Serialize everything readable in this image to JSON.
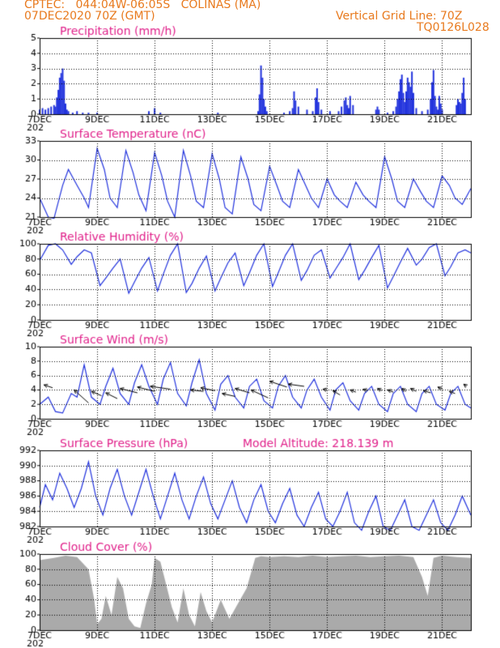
{
  "header": {
    "line1": "CPTEC:   044:04W-06:05S   COLINAS (MA)",
    "line2": "07DEC2020 70Z (GMT)",
    "grid_note": "Vertical Grid Line: 70Z",
    "code": "TQ0126L028"
  },
  "colors": {
    "header": "#e87a1e",
    "panel_title": "#e0208a",
    "series_line": "#2233dd",
    "bars": "#2233dd",
    "cloud_fill": "#aaaaaa",
    "frame": "#000000"
  },
  "x_axis": {
    "start_day": 7,
    "end_day": 22,
    "tick_labels": [
      "7DEC",
      "9DEC",
      "11DEC",
      "13DEC",
      "15DEC",
      "17DEC",
      "19DEC",
      "21DEC"
    ],
    "tick_days": [
      7,
      9,
      11,
      13,
      15,
      17,
      19,
      21
    ],
    "clipped_year_label": "202"
  },
  "chart_data": [
    {
      "type": "bar",
      "title": "Precipitation (mm/h)",
      "ylim": [
        0,
        5
      ],
      "yticks": [
        0,
        1,
        2,
        3,
        4,
        5
      ],
      "x": [
        7.0,
        7.1,
        7.2,
        7.3,
        7.4,
        7.5,
        7.55,
        7.6,
        7.65,
        7.7,
        7.75,
        7.8,
        7.85,
        7.9,
        7.95,
        8.0,
        8.15,
        8.3,
        8.5,
        8.7,
        9.0,
        10.8,
        11.0,
        11.2,
        13.2,
        14.6,
        14.65,
        14.7,
        14.75,
        14.8,
        14.85,
        14.9,
        15.5,
        15.7,
        15.8,
        15.85,
        15.9,
        16.0,
        16.3,
        16.5,
        16.6,
        16.65,
        16.7,
        16.8,
        17.1,
        17.4,
        17.5,
        17.6,
        17.65,
        17.7,
        17.75,
        17.8,
        17.9,
        18.7,
        18.75,
        18.8,
        19.1,
        19.3,
        19.4,
        19.45,
        19.5,
        19.55,
        19.6,
        19.65,
        19.7,
        19.75,
        19.8,
        19.85,
        19.9,
        19.95,
        20.0,
        20.1,
        20.3,
        20.5,
        20.6,
        20.65,
        20.7,
        20.75,
        20.8,
        20.85,
        20.9,
        20.95,
        21.0,
        21.5,
        21.55,
        21.6,
        21.65,
        21.7,
        21.75,
        21.8
      ],
      "values": [
        0.3,
        0.4,
        0.3,
        0.4,
        0.5,
        0.6,
        0.5,
        1.1,
        1.6,
        2.4,
        2.7,
        3.0,
        2.2,
        0.7,
        0.3,
        0.2,
        0.1,
        0.2,
        0.1,
        0.1,
        0.1,
        0.2,
        0.4,
        0.1,
        0.1,
        0.2,
        1.3,
        3.2,
        2.4,
        1.0,
        0.5,
        0.2,
        0.1,
        0.2,
        0.4,
        1.5,
        0.9,
        0.5,
        0.3,
        0.2,
        1.1,
        1.7,
        0.8,
        0.3,
        0.2,
        0.2,
        0.5,
        0.9,
        1.1,
        0.6,
        0.4,
        1.2,
        0.6,
        0.3,
        0.5,
        0.3,
        0.1,
        0.2,
        0.5,
        1.0,
        1.5,
        2.3,
        2.6,
        1.4,
        0.8,
        1.5,
        2.4,
        2.1,
        1.8,
        2.8,
        1.4,
        0.4,
        0.2,
        0.3,
        1.0,
        2.1,
        2.9,
        1.2,
        0.5,
        0.3,
        1.2,
        0.7,
        0.3,
        0.6,
        1.0,
        0.8,
        0.7,
        1.4,
        2.4,
        1.0
      ]
    },
    {
      "type": "line",
      "title": "Surface Temperature (nC)",
      "ylim": [
        21,
        33
      ],
      "yticks": [
        21,
        24,
        27,
        30,
        33
      ],
      "x": [
        7.0,
        7.3,
        7.5,
        7.8,
        8.0,
        8.3,
        8.55,
        8.7,
        9.0,
        9.25,
        9.45,
        9.7,
        10.0,
        10.25,
        10.45,
        10.7,
        11.0,
        11.25,
        11.45,
        11.7,
        12.0,
        12.25,
        12.45,
        12.7,
        13.0,
        13.25,
        13.45,
        13.7,
        14.0,
        14.25,
        14.45,
        14.7,
        15.0,
        15.25,
        15.45,
        15.7,
        16.0,
        16.25,
        16.45,
        16.7,
        17.0,
        17.25,
        17.45,
        17.7,
        18.0,
        18.25,
        18.45,
        18.7,
        19.0,
        19.25,
        19.45,
        19.7,
        20.0,
        20.25,
        20.45,
        20.7,
        21.0,
        21.25,
        21.45,
        21.7,
        22.0
      ],
      "values": [
        24.0,
        21.0,
        20.8,
        26.0,
        28.5,
        26.0,
        24.0,
        22.5,
        31.8,
        28.5,
        24.0,
        22.5,
        31.5,
        28.0,
        24.5,
        22.0,
        31.2,
        27.5,
        23.5,
        21.0,
        31.5,
        27.5,
        23.5,
        22.5,
        31.0,
        27.0,
        22.5,
        21.5,
        30.5,
        27.0,
        23.0,
        22.0,
        29.0,
        26.0,
        23.5,
        22.5,
        28.5,
        26.0,
        24.0,
        22.5,
        27.0,
        24.5,
        23.5,
        22.5,
        26.5,
        24.5,
        23.5,
        22.5,
        30.5,
        27.0,
        23.5,
        22.5,
        27.0,
        25.0,
        23.5,
        22.5,
        27.5,
        26.0,
        24.0,
        23.0,
        25.5
      ]
    },
    {
      "type": "line",
      "title": "Relative Humidity (%)",
      "ylim": [
        0,
        100
      ],
      "yticks": [
        0,
        20,
        40,
        60,
        80,
        100
      ],
      "x": [
        7.0,
        7.3,
        7.55,
        7.8,
        8.1,
        8.3,
        8.55,
        8.8,
        9.1,
        9.3,
        9.55,
        9.8,
        10.1,
        10.3,
        10.55,
        10.8,
        11.1,
        11.3,
        11.55,
        11.8,
        12.1,
        12.3,
        12.55,
        12.8,
        13.1,
        13.3,
        13.55,
        13.8,
        14.1,
        14.3,
        14.55,
        14.8,
        15.1,
        15.3,
        15.55,
        15.8,
        16.1,
        16.3,
        16.55,
        16.8,
        17.1,
        17.3,
        17.55,
        17.8,
        18.1,
        18.3,
        18.55,
        18.8,
        19.1,
        19.3,
        19.55,
        19.8,
        20.1,
        20.3,
        20.55,
        20.8,
        21.1,
        21.3,
        21.55,
        21.8,
        22.0
      ],
      "values": [
        78,
        98,
        100,
        92,
        73,
        83,
        92,
        88,
        45,
        55,
        68,
        80,
        35,
        50,
        68,
        82,
        38,
        60,
        85,
        100,
        36,
        48,
        68,
        84,
        38,
        55,
        75,
        88,
        45,
        62,
        85,
        100,
        44,
        62,
        85,
        100,
        52,
        65,
        85,
        92,
        55,
        67,
        82,
        100,
        53,
        65,
        82,
        98,
        42,
        57,
        76,
        94,
        72,
        80,
        95,
        100,
        58,
        70,
        88,
        92,
        88
      ]
    },
    {
      "type": "line",
      "title": "Surface Wind (m/s)",
      "ylim": [
        0,
        10
      ],
      "yticks": [
        0,
        2,
        4,
        6,
        8,
        10
      ],
      "x": [
        7.0,
        7.3,
        7.55,
        7.8,
        8.1,
        8.3,
        8.55,
        8.8,
        9.1,
        9.3,
        9.55,
        9.8,
        10.1,
        10.3,
        10.55,
        10.8,
        11.1,
        11.3,
        11.55,
        11.8,
        12.1,
        12.3,
        12.55,
        12.8,
        13.1,
        13.3,
        13.55,
        13.8,
        14.1,
        14.3,
        14.55,
        14.8,
        15.1,
        15.3,
        15.55,
        15.8,
        16.1,
        16.3,
        16.55,
        16.8,
        17.1,
        17.3,
        17.55,
        17.8,
        18.1,
        18.3,
        18.55,
        18.8,
        19.1,
        19.3,
        19.55,
        19.8,
        20.1,
        20.3,
        20.55,
        20.8,
        21.1,
        21.3,
        21.55,
        21.8,
        22.0
      ],
      "values": [
        2.0,
        3.0,
        1.0,
        0.8,
        3.5,
        3.0,
        7.5,
        3.0,
        2.0,
        4.5,
        7.0,
        3.5,
        2.0,
        5.0,
        7.5,
        4.5,
        2.0,
        5.5,
        7.8,
        3.5,
        1.8,
        5.0,
        8.2,
        3.5,
        1.2,
        4.8,
        6.0,
        3.0,
        1.5,
        4.5,
        5.5,
        2.5,
        1.5,
        4.5,
        6.0,
        3.0,
        1.5,
        4.0,
        5.5,
        3.0,
        1.2,
        4.0,
        5.0,
        2.5,
        1.2,
        3.5,
        4.5,
        2.0,
        1.0,
        3.5,
        4.5,
        2.0,
        1.0,
        3.5,
        4.5,
        2.0,
        1.2,
        3.5,
        4.5,
        2.0,
        1.5
      ]
    },
    {
      "type": "line",
      "title": "Surface Pressure (hPa)",
      "annotation": "Model Altitude: 218.139 m",
      "ylim": [
        982,
        992
      ],
      "yticks": [
        982,
        984,
        986,
        988,
        990,
        992
      ],
      "x": [
        7.0,
        7.2,
        7.45,
        7.7,
        7.95,
        8.2,
        8.45,
        8.7,
        8.95,
        9.2,
        9.45,
        9.7,
        9.95,
        10.2,
        10.45,
        10.7,
        10.95,
        11.2,
        11.45,
        11.7,
        11.95,
        12.2,
        12.45,
        12.7,
        12.95,
        13.2,
        13.45,
        13.7,
        13.95,
        14.2,
        14.45,
        14.7,
        14.95,
        15.2,
        15.45,
        15.7,
        15.95,
        16.2,
        16.45,
        16.7,
        16.95,
        17.2,
        17.45,
        17.7,
        17.95,
        18.2,
        18.45,
        18.7,
        18.95,
        19.2,
        19.45,
        19.7,
        19.95,
        20.2,
        20.45,
        20.7,
        20.95,
        21.2,
        21.45,
        21.7,
        22.0
      ],
      "values": [
        984.5,
        987.5,
        985.5,
        989.0,
        987.0,
        984.5,
        987.0,
        990.5,
        986.0,
        983.5,
        987.0,
        989.5,
        986.0,
        983.5,
        986.5,
        989.5,
        986.0,
        983.0,
        986.0,
        989.0,
        985.5,
        983.0,
        986.0,
        988.5,
        985.0,
        983.0,
        985.5,
        988.0,
        984.5,
        982.5,
        985.5,
        987.5,
        984.0,
        982.5,
        985.0,
        987.0,
        983.5,
        982.0,
        984.5,
        986.5,
        983.0,
        982.0,
        984.0,
        986.5,
        982.5,
        981.5,
        984.0,
        986.0,
        982.0,
        981.5,
        983.5,
        985.5,
        982.0,
        981.5,
        983.5,
        985.5,
        982.5,
        981.5,
        983.5,
        986.0,
        983.5
      ]
    },
    {
      "type": "area",
      "title": "Cloud Cover (%)",
      "ylim": [
        0,
        100
      ],
      "yticks": [
        0,
        20,
        40,
        60,
        80,
        100
      ],
      "x": [
        7.0,
        7.5,
        7.9,
        8.3,
        8.7,
        8.9,
        9.0,
        9.15,
        9.3,
        9.5,
        9.7,
        9.9,
        10.1,
        10.3,
        10.5,
        10.7,
        10.9,
        11.0,
        11.2,
        11.4,
        11.6,
        11.8,
        12.0,
        12.2,
        12.4,
        12.6,
        12.8,
        13.0,
        13.3,
        13.6,
        13.9,
        14.2,
        14.5,
        14.7,
        15.0,
        15.5,
        16.0,
        16.5,
        17.0,
        17.5,
        18.0,
        18.5,
        19.0,
        19.5,
        20.0,
        20.3,
        20.5,
        20.7,
        21.0,
        21.5,
        22.0
      ],
      "values": [
        92,
        95,
        98,
        96,
        80,
        40,
        8,
        15,
        45,
        20,
        70,
        55,
        15,
        5,
        3,
        35,
        60,
        95,
        90,
        60,
        30,
        10,
        55,
        20,
        5,
        50,
        25,
        10,
        40,
        15,
        35,
        55,
        95,
        97,
        96,
        97,
        96,
        98,
        96,
        97,
        98,
        96,
        97,
        98,
        96,
        70,
        45,
        95,
        98,
        96,
        95
      ]
    }
  ],
  "wind_arrows": {
    "x": [
      7.45,
      8.7,
      9.15,
      9.7,
      10.4,
      11.0,
      11.55,
      12.7,
      13.1,
      13.8,
      14.3,
      14.95,
      15.6,
      16.2,
      17.0,
      17.45,
      18.0,
      18.4,
      18.9,
      19.3,
      19.75,
      20.1,
      20.6,
      21.0,
      21.45,
      21.85
    ],
    "y": [
      4.3,
      2.2,
      3.2,
      2.8,
      3.6,
      3.8,
      4.1,
      3.8,
      3.9,
      3.1,
      3.6,
      2.9,
      4.4,
      4.5,
      4.0,
      3.3,
      3.7,
      3.9,
      3.9,
      3.7,
      3.8,
      3.8,
      3.6,
      4.1,
      3.5,
      4.5
    ],
    "dx_days": [
      0.3,
      0.5,
      0.35,
      0.4,
      0.6,
      0.6,
      0.7,
      0.45,
      0.5,
      0.45,
      0.5,
      0.6,
      0.6,
      0.55,
      0.15,
      0.25,
      0.2,
      0.15,
      0.15,
      0.2,
      0.15,
      0.2,
      0.25,
      0.15,
      0.2,
      0.1
    ],
    "dy": [
      0.4,
      1.8,
      0.6,
      0.8,
      0.6,
      0.6,
      0.4,
      0.2,
      0.4,
      0.4,
      0.6,
      1.1,
      0.8,
      0.3,
      0.1,
      0.6,
      0.3,
      0.2,
      0.3,
      0.3,
      0.4,
      0.4,
      0.3,
      0.3,
      0.3,
      0.3
    ]
  }
}
